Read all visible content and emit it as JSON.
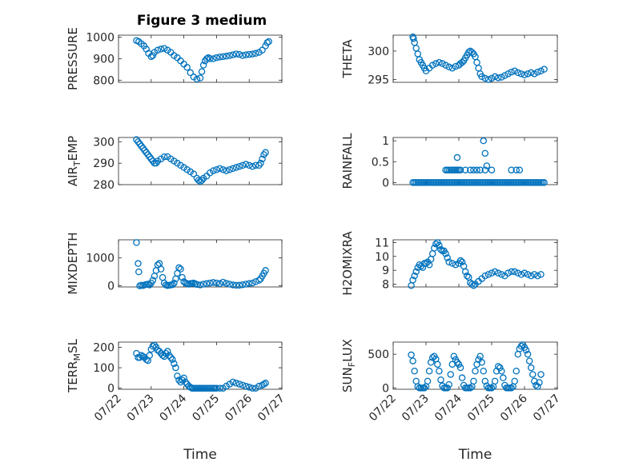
{
  "figure": {
    "title": "Figure 3 medium"
  },
  "chart_data": [
    {
      "type": "scatter",
      "name": "pressure-panel",
      "ylabel": "PRESSURE",
      "ylabel_main": "PRESSURE",
      "ylabel_sub": "",
      "ylabel_tail": "",
      "xlabel": "",
      "xlim": [
        0,
        5
      ],
      "ylim": [
        790,
        1010
      ],
      "yticks": [
        800,
        900,
        1000
      ],
      "ytick_labels": [
        "800",
        "900",
        "1000"
      ],
      "xticks": [
        0,
        1,
        2,
        3,
        4,
        5
      ],
      "xtick_labels": [],
      "grid": true,
      "minor_grid": true,
      "color": "#0072BD",
      "x": [
        0.55,
        0.62,
        0.7,
        0.78,
        0.85,
        0.92,
        1.0,
        1.05,
        1.1,
        1.2,
        1.3,
        1.4,
        1.5,
        1.6,
        1.7,
        1.8,
        1.9,
        2.0,
        2.1,
        2.2,
        2.3,
        2.4,
        2.5,
        2.55,
        2.6,
        2.65,
        2.7,
        2.75,
        2.8,
        2.9,
        3.0,
        3.1,
        3.2,
        3.3,
        3.4,
        3.5,
        3.6,
        3.7,
        3.8,
        3.9,
        4.0,
        4.1,
        4.2,
        4.3,
        4.4,
        4.5,
        4.55,
        4.6
      ],
      "y": [
        985,
        980,
        970,
        960,
        945,
        925,
        910,
        915,
        930,
        940,
        945,
        948,
        940,
        930,
        915,
        905,
        890,
        875,
        860,
        835,
        815,
        805,
        810,
        840,
        870,
        890,
        900,
        905,
        900,
        900,
        905,
        908,
        910,
        912,
        915,
        918,
        922,
        920,
        915,
        918,
        920,
        922,
        925,
        930,
        940,
        960,
        975,
        980
      ]
    },
    {
      "type": "scatter",
      "name": "theta-panel",
      "ylabel": "THETA",
      "ylabel_main": "THETA",
      "ylabel_sub": "",
      "ylabel_tail": "",
      "xlabel": "",
      "xlim": [
        0,
        5
      ],
      "ylim": [
        294.5,
        302.8
      ],
      "yticks": [
        295,
        300
      ],
      "ytick_labels": [
        "295",
        "300"
      ],
      "xticks": [
        0,
        1,
        2,
        3,
        4,
        5
      ],
      "xtick_labels": [],
      "grid": true,
      "minor_grid": true,
      "color": "#0072BD",
      "x": [
        0.6,
        0.62,
        0.65,
        0.7,
        0.75,
        0.8,
        0.85,
        0.9,
        0.95,
        1.0,
        1.1,
        1.2,
        1.3,
        1.4,
        1.5,
        1.6,
        1.7,
        1.8,
        1.9,
        2.0,
        2.05,
        2.1,
        2.15,
        2.2,
        2.25,
        2.3,
        2.35,
        2.4,
        2.45,
        2.5,
        2.55,
        2.6,
        2.65,
        2.7,
        2.8,
        2.9,
        3.0,
        3.1,
        3.2,
        3.3,
        3.4,
        3.5,
        3.6,
        3.7,
        3.8,
        3.9,
        4.0,
        4.1,
        4.2,
        4.3,
        4.4,
        4.5,
        4.6
      ],
      "y": [
        302.5,
        302.2,
        301.5,
        300.5,
        299.5,
        298.5,
        298.0,
        297.5,
        297.0,
        296.5,
        297.0,
        297.5,
        297.8,
        298.0,
        297.8,
        297.5,
        297.2,
        297.0,
        297.3,
        297.5,
        297.8,
        298.0,
        298.3,
        298.8,
        299.3,
        299.8,
        300.0,
        299.8,
        299.5,
        299.0,
        298.0,
        297.0,
        296.0,
        295.5,
        295.2,
        295.0,
        295.2,
        295.5,
        295.3,
        295.4,
        295.7,
        296.0,
        296.3,
        296.5,
        296.2,
        296.0,
        295.8,
        296.0,
        296.2,
        296.0,
        296.3,
        296.5,
        296.8
      ]
    },
    {
      "type": "scatter",
      "name": "air-temp-panel",
      "ylabel": "AIR_TEMP",
      "ylabel_main": "AIR",
      "ylabel_sub": "T",
      "ylabel_tail": "EMP",
      "xlabel": "",
      "xlim": [
        0,
        5
      ],
      "ylim": [
        280,
        302
      ],
      "yticks": [
        280,
        290,
        300
      ],
      "ytick_labels": [
        "280",
        "290",
        "300"
      ],
      "xticks": [
        0,
        1,
        2,
        3,
        4,
        5
      ],
      "xtick_labels": [],
      "grid": true,
      "minor_grid": true,
      "color": "#0072BD",
      "x": [
        0.55,
        0.6,
        0.65,
        0.7,
        0.75,
        0.8,
        0.85,
        0.9,
        0.95,
        1.0,
        1.05,
        1.1,
        1.15,
        1.2,
        1.3,
        1.4,
        1.5,
        1.6,
        1.7,
        1.8,
        1.9,
        2.0,
        2.1,
        2.2,
        2.3,
        2.4,
        2.45,
        2.5,
        2.55,
        2.6,
        2.7,
        2.8,
        2.9,
        3.0,
        3.1,
        3.2,
        3.3,
        3.4,
        3.5,
        3.6,
        3.7,
        3.8,
        3.9,
        4.0,
        4.1,
        4.2,
        4.3,
        4.35,
        4.4,
        4.45,
        4.5
      ],
      "y": [
        301,
        300,
        299,
        298,
        297,
        296,
        295,
        294,
        293,
        292,
        291,
        290,
        290,
        291,
        292,
        293,
        293,
        292,
        291,
        290,
        289,
        288,
        287,
        286,
        285,
        283,
        282,
        281.5,
        282,
        283,
        284,
        285.5,
        286.5,
        287,
        287.5,
        287,
        286.5,
        287,
        287.5,
        288,
        288.5,
        289,
        289.5,
        289,
        288.5,
        289,
        289,
        290,
        292,
        294,
        295
      ]
    },
    {
      "type": "scatter",
      "name": "rainfall-panel",
      "ylabel": "RAINFALL",
      "ylabel_main": "RAINFALL",
      "ylabel_sub": "",
      "ylabel_tail": "",
      "xlabel": "",
      "xlim": [
        0,
        5
      ],
      "ylim": [
        -0.05,
        1.08
      ],
      "yticks": [
        0,
        0.5,
        1
      ],
      "ytick_labels": [
        "0",
        "0.5",
        "1"
      ],
      "xticks": [
        0,
        1,
        2,
        3,
        4,
        5
      ],
      "xtick_labels": [],
      "grid": true,
      "minor_grid": true,
      "color": "#0072BD",
      "x": [
        0.6,
        0.65,
        0.7,
        0.75,
        0.8,
        0.85,
        0.9,
        0.95,
        1.0,
        1.05,
        1.1,
        1.15,
        1.2,
        1.25,
        1.3,
        1.35,
        1.4,
        1.45,
        1.5,
        1.55,
        1.6,
        1.65,
        1.7,
        1.75,
        1.8,
        1.85,
        1.9,
        1.95,
        2.0,
        2.05,
        2.1,
        2.15,
        2.2,
        2.25,
        2.3,
        2.35,
        2.4,
        2.45,
        2.5,
        2.55,
        2.6,
        2.65,
        2.7,
        2.75,
        2.8,
        2.85,
        2.9,
        2.95,
        3.0,
        3.05,
        3.1,
        3.15,
        3.2,
        3.25,
        3.3,
        3.35,
        3.4,
        3.45,
        3.5,
        3.55,
        3.6,
        3.65,
        3.7,
        3.75,
        3.8,
        3.85,
        3.9,
        3.95,
        4.0,
        4.05,
        4.1,
        4.15,
        4.2,
        4.25,
        4.3,
        4.35,
        4.4,
        4.45,
        4.5,
        4.55,
        4.6,
        1.6,
        1.65,
        1.7,
        1.75,
        1.8,
        1.85,
        1.9,
        1.95,
        2.0,
        2.05,
        2.2,
        2.35,
        2.45,
        2.55,
        2.65,
        2.8,
        3.0,
        3.6,
        3.75,
        3.85,
        1.95,
        2.75,
        2.8,
        2.85
      ],
      "y": [
        0,
        0,
        0,
        0,
        0,
        0,
        0,
        0,
        0,
        0,
        0,
        0,
        0,
        0,
        0,
        0,
        0,
        0,
        0,
        0,
        0,
        0,
        0,
        0,
        0,
        0,
        0,
        0,
        0,
        0,
        0,
        0,
        0,
        0,
        0,
        0,
        0,
        0,
        0,
        0,
        0,
        0,
        0,
        0,
        0,
        0,
        0,
        0,
        0,
        0,
        0,
        0,
        0,
        0,
        0,
        0,
        0,
        0,
        0,
        0,
        0,
        0,
        0,
        0,
        0,
        0,
        0,
        0,
        0,
        0,
        0,
        0,
        0,
        0,
        0,
        0,
        0,
        0,
        0,
        0,
        0,
        0.3,
        0.3,
        0.3,
        0.3,
        0.3,
        0.3,
        0.3,
        0.3,
        0.3,
        0.3,
        0.3,
        0.3,
        0.3,
        0.3,
        0.3,
        0.3,
        0.3,
        0.3,
        0.3,
        0.3,
        0.6,
        1.0,
        0.7,
        0.4
      ]
    },
    {
      "type": "scatter",
      "name": "mixdepth-panel",
      "ylabel": "MIXDEPTH",
      "ylabel_main": "MIXDEPTH",
      "ylabel_sub": "",
      "ylabel_tail": "",
      "xlabel": "",
      "xlim": [
        0,
        5
      ],
      "ylim": [
        -40,
        1650
      ],
      "yticks": [
        0,
        1000
      ],
      "ytick_labels": [
        "0",
        "1000"
      ],
      "xticks": [
        0,
        1,
        2,
        3,
        4,
        5
      ],
      "xtick_labels": [],
      "grid": true,
      "minor_grid": true,
      "color": "#0072BD",
      "x": [
        0.55,
        0.6,
        0.62,
        0.65,
        0.7,
        0.75,
        0.8,
        0.85,
        0.9,
        0.95,
        1.0,
        1.05,
        1.1,
        1.15,
        1.2,
        1.25,
        1.3,
        1.35,
        1.4,
        1.45,
        1.5,
        1.55,
        1.6,
        1.65,
        1.7,
        1.75,
        1.8,
        1.85,
        1.9,
        1.95,
        2.0,
        2.05,
        2.1,
        2.15,
        2.2,
        2.25,
        2.3,
        2.35,
        2.4,
        2.5,
        2.6,
        2.7,
        2.8,
        2.9,
        3.0,
        3.1,
        3.2,
        3.3,
        3.4,
        3.5,
        3.6,
        3.7,
        3.8,
        3.9,
        4.0,
        4.1,
        4.2,
        4.3,
        4.35,
        4.4,
        4.45,
        4.5
      ],
      "y": [
        1550,
        800,
        500,
        0,
        20,
        10,
        30,
        50,
        60,
        30,
        100,
        200,
        350,
        550,
        750,
        800,
        600,
        300,
        100,
        30,
        10,
        20,
        30,
        40,
        100,
        250,
        450,
        650,
        600,
        300,
        150,
        100,
        80,
        60,
        80,
        90,
        100,
        70,
        50,
        30,
        60,
        80,
        100,
        120,
        100,
        80,
        130,
        90,
        60,
        30,
        20,
        20,
        40,
        60,
        80,
        100,
        150,
        200,
        250,
        350,
        450,
        550
      ]
    },
    {
      "type": "scatter",
      "name": "h2omixra-panel",
      "ylabel": "H2OMIXRA",
      "ylabel_main": "H2OMIXRA",
      "ylabel_sub": "",
      "ylabel_tail": "",
      "xlabel": "",
      "xlim": [
        0,
        5
      ],
      "ylim": [
        7.8,
        11.2
      ],
      "yticks": [
        8,
        9,
        10,
        11
      ],
      "ytick_labels": [
        "8",
        "9",
        "10",
        "11"
      ],
      "xticks": [
        0,
        1,
        2,
        3,
        4,
        5
      ],
      "xtick_labels": [],
      "grid": true,
      "minor_grid": true,
      "color": "#0072BD",
      "x": [
        0.55,
        0.6,
        0.65,
        0.7,
        0.75,
        0.8,
        0.85,
        0.9,
        0.95,
        1.0,
        1.05,
        1.1,
        1.15,
        1.2,
        1.25,
        1.3,
        1.35,
        1.4,
        1.45,
        1.5,
        1.55,
        1.6,
        1.65,
        1.7,
        1.8,
        1.9,
        2.0,
        2.05,
        2.1,
        2.15,
        2.2,
        2.25,
        2.3,
        2.35,
        2.4,
        2.45,
        2.5,
        2.6,
        2.7,
        2.8,
        2.9,
        3.0,
        3.1,
        3.2,
        3.3,
        3.4,
        3.5,
        3.6,
        3.7,
        3.8,
        3.9,
        4.0,
        4.1,
        4.2,
        4.3,
        4.4,
        4.5
      ],
      "y": [
        7.9,
        8.3,
        8.6,
        8.9,
        9.2,
        9.4,
        9.3,
        9.2,
        9.5,
        9.5,
        9.6,
        9.4,
        9.8,
        10.2,
        10.6,
        10.9,
        11.0,
        10.8,
        10.5,
        10.4,
        10.4,
        10.2,
        9.9,
        9.6,
        9.5,
        9.4,
        9.5,
        9.7,
        9.6,
        9.3,
        8.9,
        8.6,
        8.5,
        8.1,
        8.0,
        7.9,
        8.0,
        8.2,
        8.4,
        8.6,
        8.7,
        8.8,
        8.9,
        8.8,
        8.7,
        8.6,
        8.8,
        8.9,
        8.9,
        8.8,
        8.7,
        8.8,
        8.7,
        8.6,
        8.7,
        8.6,
        8.7
      ]
    },
    {
      "type": "scatter",
      "name": "terr-msl-panel",
      "ylabel": "TERR_MSL",
      "ylabel_main": "TERR",
      "ylabel_sub": "M",
      "ylabel_tail": "SL",
      "xlabel": "Time",
      "xlim": [
        0,
        5
      ],
      "ylim": [
        -5,
        225
      ],
      "yticks": [
        0,
        100,
        200
      ],
      "ytick_labels": [
        "0",
        "100",
        "200"
      ],
      "xticks": [
        0,
        1,
        2,
        3,
        4,
        5
      ],
      "xtick_labels": [
        "07/22",
        "07/23",
        "07/24",
        "07/25",
        "07/26",
        "07/27"
      ],
      "grid": true,
      "minor_grid": true,
      "color": "#0072BD",
      "x": [
        0.55,
        0.6,
        0.65,
        0.7,
        0.75,
        0.8,
        0.85,
        0.9,
        0.95,
        1.0,
        1.05,
        1.1,
        1.15,
        1.2,
        1.25,
        1.3,
        1.35,
        1.4,
        1.45,
        1.5,
        1.55,
        1.6,
        1.65,
        1.7,
        1.75,
        1.8,
        1.85,
        1.9,
        1.95,
        2.0,
        2.05,
        2.1,
        2.15,
        2.2,
        2.25,
        2.3,
        2.35,
        2.4,
        2.45,
        2.5,
        2.55,
        2.6,
        2.65,
        2.7,
        2.75,
        2.8,
        2.85,
        2.9,
        2.95,
        3.0,
        3.1,
        3.2,
        3.3,
        3.4,
        3.5,
        3.6,
        3.7,
        3.8,
        3.9,
        4.0,
        4.1,
        4.2,
        4.3,
        4.4,
        4.45,
        4.5
      ],
      "y": [
        170,
        150,
        150,
        160,
        155,
        150,
        140,
        135,
        160,
        190,
        205,
        210,
        200,
        185,
        180,
        170,
        160,
        155,
        170,
        180,
        160,
        150,
        140,
        120,
        100,
        60,
        40,
        30,
        40,
        50,
        30,
        20,
        10,
        5,
        0,
        0,
        0,
        0,
        0,
        0,
        0,
        0,
        0,
        0,
        0,
        0,
        0,
        0,
        0,
        0,
        0,
        0,
        10,
        20,
        30,
        25,
        20,
        15,
        10,
        5,
        0,
        0,
        10,
        15,
        20,
        25
      ]
    },
    {
      "type": "scatter",
      "name": "sun-flux-panel",
      "ylabel": "SUN_FLUX",
      "ylabel_main": "SUN",
      "ylabel_sub": "F",
      "ylabel_tail": "LUX",
      "xlabel": "Time",
      "xlim": [
        0,
        5
      ],
      "ylim": [
        -20,
        680
      ],
      "yticks": [
        0,
        500
      ],
      "ytick_labels": [
        "0",
        "500"
      ],
      "xticks": [
        0,
        1,
        2,
        3,
        4,
        5
      ],
      "xtick_labels": [
        "07/22",
        "07/23",
        "07/24",
        "07/25",
        "07/26",
        "07/27"
      ],
      "grid": true,
      "minor_grid": true,
      "color": "#0072BD",
      "x": [
        0.55,
        0.6,
        0.65,
        0.7,
        0.75,
        0.8,
        0.85,
        0.9,
        0.95,
        1.0,
        1.05,
        1.1,
        1.15,
        1.2,
        1.25,
        1.3,
        1.35,
        1.4,
        1.45,
        1.5,
        1.55,
        1.6,
        1.65,
        1.7,
        1.75,
        1.8,
        1.85,
        1.9,
        1.95,
        2.0,
        2.05,
        2.1,
        2.15,
        2.2,
        2.25,
        2.3,
        2.35,
        2.4,
        2.45,
        2.5,
        2.55,
        2.6,
        2.65,
        2.7,
        2.75,
        2.8,
        2.85,
        2.9,
        2.95,
        3.0,
        3.05,
        3.1,
        3.15,
        3.2,
        3.25,
        3.3,
        3.35,
        3.4,
        3.45,
        3.5,
        3.55,
        3.6,
        3.65,
        3.7,
        3.75,
        3.8,
        3.85,
        3.9,
        3.95,
        4.0,
        4.05,
        4.1,
        4.15,
        4.2,
        4.25,
        4.3,
        4.35,
        4.4,
        4.45,
        4.5
      ],
      "y": [
        490,
        400,
        250,
        100,
        20,
        0,
        0,
        0,
        0,
        20,
        100,
        250,
        380,
        450,
        470,
        430,
        350,
        250,
        120,
        30,
        0,
        0,
        0,
        50,
        200,
        350,
        470,
        420,
        380,
        350,
        300,
        150,
        40,
        0,
        0,
        0,
        0,
        20,
        100,
        250,
        350,
        420,
        470,
        380,
        250,
        100,
        30,
        0,
        0,
        0,
        20,
        100,
        250,
        320,
        300,
        250,
        150,
        40,
        0,
        0,
        0,
        0,
        20,
        100,
        250,
        500,
        580,
        620,
        640,
        600,
        560,
        500,
        400,
        300,
        200,
        100,
        40,
        20,
        80,
        200
      ]
    }
  ]
}
